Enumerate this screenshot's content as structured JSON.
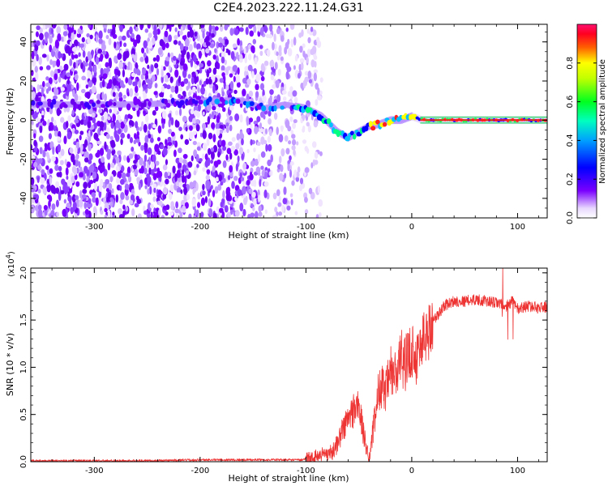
{
  "title": "C2E4.2023.222.11.24.G31",
  "chart_data": [
    {
      "type": "heatmap",
      "xlabel": "Height of straight line (km)",
      "ylabel": "Frequency (Hz)",
      "xlim": [
        -360,
        128
      ],
      "ylim": [
        -50,
        49
      ],
      "xticks": [
        "-300",
        "-200",
        "-100",
        "0",
        "100"
      ],
      "xtick_values": [
        -300,
        -200,
        -100,
        0,
        100
      ],
      "yticks": [
        "40",
        "20",
        "0",
        "-20",
        "-40"
      ],
      "ytick_values": [
        40,
        20,
        0,
        -20,
        -40
      ],
      "colorbar": {
        "label": "Normalized spectral amplitude",
        "ticks": [
          "0.0",
          "0.2",
          "0.4",
          "0.6",
          "0.8"
        ],
        "tick_values": [
          0,
          0.2,
          0.4,
          0.6,
          0.8
        ],
        "range": [
          0,
          1
        ],
        "colormap": [
          "#ffffff",
          "#7a00ff",
          "#0000ff",
          "#00c0ff",
          "#00ff40",
          "#ffff00",
          "#ff2020",
          "#ff1060"
        ]
      },
      "ridge": {
        "x": [
          -360,
          -250,
          -200,
          -180,
          -160,
          -140,
          -120,
          -100,
          -85,
          -70,
          -60,
          -50,
          -40,
          -30,
          -20,
          -10,
          0,
          10,
          128
        ],
        "y": [
          8,
          8,
          10,
          10,
          10,
          6,
          8,
          6,
          2,
          -6,
          -9,
          -6,
          -3,
          -2,
          0,
          0,
          2,
          0,
          0
        ]
      },
      "noise_edge_x": -95
    },
    {
      "type": "line",
      "xlabel": "Height of straight line (km)",
      "ylabel": "SNR (10 * v/v)",
      "y_multiplier": "(x10",
      "y_multiplier_exp": "4",
      "y_multiplier_close": ")",
      "xlim": [
        -360,
        128
      ],
      "ylim": [
        0,
        2.05
      ],
      "xticks": [
        "-300",
        "-200",
        "-100",
        "0",
        "100"
      ],
      "xtick_values": [
        -300,
        -200,
        -100,
        0,
        100
      ],
      "yticks": [
        "0.0",
        "0.5",
        "1.0",
        "1.5",
        "2.0"
      ],
      "ytick_values": [
        0,
        0.5,
        1.0,
        1.5,
        2.0
      ],
      "line_color": "#ee3333",
      "series": [
        {
          "x": [
            -360,
            -300,
            -250,
            -200,
            -150,
            -120,
            -105,
            -95,
            -85,
            -75,
            -70,
            -65,
            -60,
            -55,
            -50,
            -45,
            -40,
            -35,
            -30,
            -25,
            -20,
            -15,
            -10,
            -5,
            0,
            5,
            10,
            15,
            20,
            25,
            30,
            40,
            50,
            60,
            70,
            80,
            90,
            95,
            100,
            110,
            120,
            128
          ],
          "y": [
            0.01,
            0.01,
            0.01,
            0.02,
            0.02,
            0.02,
            0.02,
            0.04,
            0.08,
            0.1,
            0.2,
            0.35,
            0.45,
            0.55,
            0.6,
            0.25,
            0.05,
            0.45,
            0.85,
            0.7,
            0.95,
            0.9,
            1.1,
            1.05,
            1.2,
            1.1,
            1.3,
            1.35,
            1.5,
            1.55,
            1.65,
            1.7,
            1.7,
            1.72,
            1.7,
            1.68,
            1.65,
            1.7,
            1.62,
            1.65,
            1.63,
            1.64
          ]
        }
      ]
    }
  ]
}
